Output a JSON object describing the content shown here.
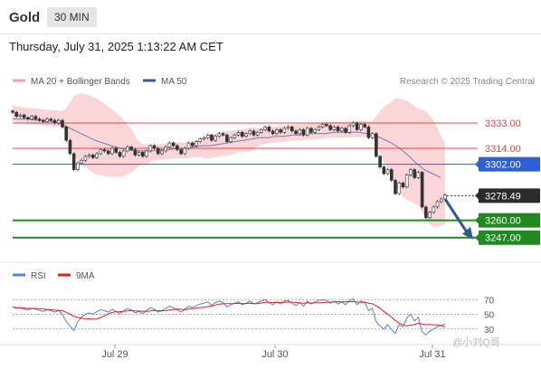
{
  "header": {
    "title": "Gold",
    "timeframe": "30 MIN",
    "datetime": "Thursday, July 31, 2025 1:13:22 AM CET"
  },
  "legend": {
    "ma20": "MA 20 + Bollinger Bands",
    "ma50": "MA 50",
    "copyright": "Research © 2025 Trading Central"
  },
  "rsi_legend": {
    "rsi": "RSI",
    "ma9": "9MA"
  },
  "watermark": "@小刘Q哥",
  "colors": {
    "resistance": "#e04848",
    "pivot": "#2f5fd6",
    "support": "#1f8a1f",
    "bollinger": "#f8c8cc",
    "ma50": "#3b5998",
    "rsi": "#5b7ed6",
    "ma9": "#e02020"
  },
  "chart_data": {
    "type": "line",
    "title": "Gold",
    "price_range": [
      3238,
      3352
    ],
    "x_ticks": [
      "Jul 29",
      "Jul 30",
      "Jul 31"
    ],
    "levels": [
      {
        "label": "3333.00",
        "value": 3333,
        "kind": "resistance"
      },
      {
        "label": "3314.00",
        "value": 3314,
        "kind": "resistance"
      },
      {
        "label": "3302.00",
        "value": 3302,
        "kind": "pivot"
      },
      {
        "label": "3278.49",
        "value": 3278.49,
        "kind": "current"
      },
      {
        "label": "3260.00",
        "value": 3260,
        "kind": "support"
      },
      {
        "label": "3247.00",
        "value": 3247,
        "kind": "support"
      }
    ],
    "close": [
      3341,
      3338,
      3339,
      3337,
      3336,
      3338,
      3336,
      3335,
      3334,
      3336,
      3335,
      3333,
      3335,
      3330,
      3320,
      3310,
      3298,
      3303,
      3305,
      3308,
      3309,
      3307,
      3310,
      3313,
      3312,
      3310,
      3314,
      3311,
      3308,
      3312,
      3315,
      3313,
      3309,
      3311,
      3308,
      3312,
      3316,
      3314,
      3310,
      3312,
      3315,
      3318,
      3316,
      3313,
      3310,
      3314,
      3318,
      3316,
      3319,
      3321,
      3322,
      3324,
      3320,
      3323,
      3325,
      3324,
      3319,
      3322,
      3324,
      3326,
      3323,
      3325,
      3327,
      3324,
      3326,
      3328,
      3330,
      3327,
      3325,
      3328,
      3326,
      3329,
      3330,
      3327,
      3325,
      3328,
      3324,
      3329,
      3326,
      3328,
      3330,
      3332,
      3331,
      3328,
      3330,
      3327,
      3329,
      3326,
      3331,
      3333,
      3328,
      3332,
      3330,
      3322,
      3325,
      3308,
      3300,
      3295,
      3298,
      3290,
      3280,
      3288,
      3285,
      3294,
      3298,
      3292,
      3296,
      3270,
      3262,
      3266,
      3270,
      3274,
      3276,
      3279
    ],
    "ma50": [
      3336,
      3336,
      3336,
      3335,
      3335,
      3334,
      3332,
      3329,
      3326,
      3323,
      3320,
      3318,
      3316,
      3314,
      3313,
      3312,
      3312,
      3312,
      3313,
      3313,
      3314,
      3314,
      3315,
      3316,
      3316,
      3317,
      3318,
      3319,
      3320,
      3321,
      3322,
      3322,
      3323,
      3323,
      3324,
      3324,
      3325,
      3325,
      3325,
      3326,
      3326,
      3326,
      3326,
      3325,
      3324,
      3321,
      3318,
      3314,
      3309,
      3303,
      3298,
      3295,
      3292
    ],
    "rsi": [
      60,
      58,
      59,
      57,
      56,
      58,
      57,
      55,
      54,
      56,
      55,
      53,
      55,
      50,
      40,
      34,
      28,
      40,
      46,
      50,
      52,
      50,
      54,
      56,
      55,
      53,
      57,
      54,
      51,
      55,
      58,
      56,
      52,
      54,
      51,
      55,
      59,
      57,
      53,
      55,
      58,
      61,
      59,
      56,
      53,
      57,
      61,
      59,
      62,
      64,
      65,
      67,
      62,
      66,
      68,
      66,
      60,
      63,
      65,
      67,
      63,
      65,
      68,
      64,
      66,
      68,
      70,
      66,
      63,
      67,
      64,
      68,
      69,
      65,
      62,
      66,
      61,
      68,
      64,
      67,
      69,
      70,
      69,
      65,
      68,
      64,
      67,
      63,
      69,
      71,
      63,
      68,
      66,
      55,
      58,
      40,
      34,
      30,
      36,
      29,
      24,
      36,
      33,
      45,
      50,
      41,
      46,
      26,
      22,
      27,
      30,
      33,
      35,
      37
    ],
    "rsi_ticks": [
      "70",
      "50",
      "30"
    ]
  }
}
